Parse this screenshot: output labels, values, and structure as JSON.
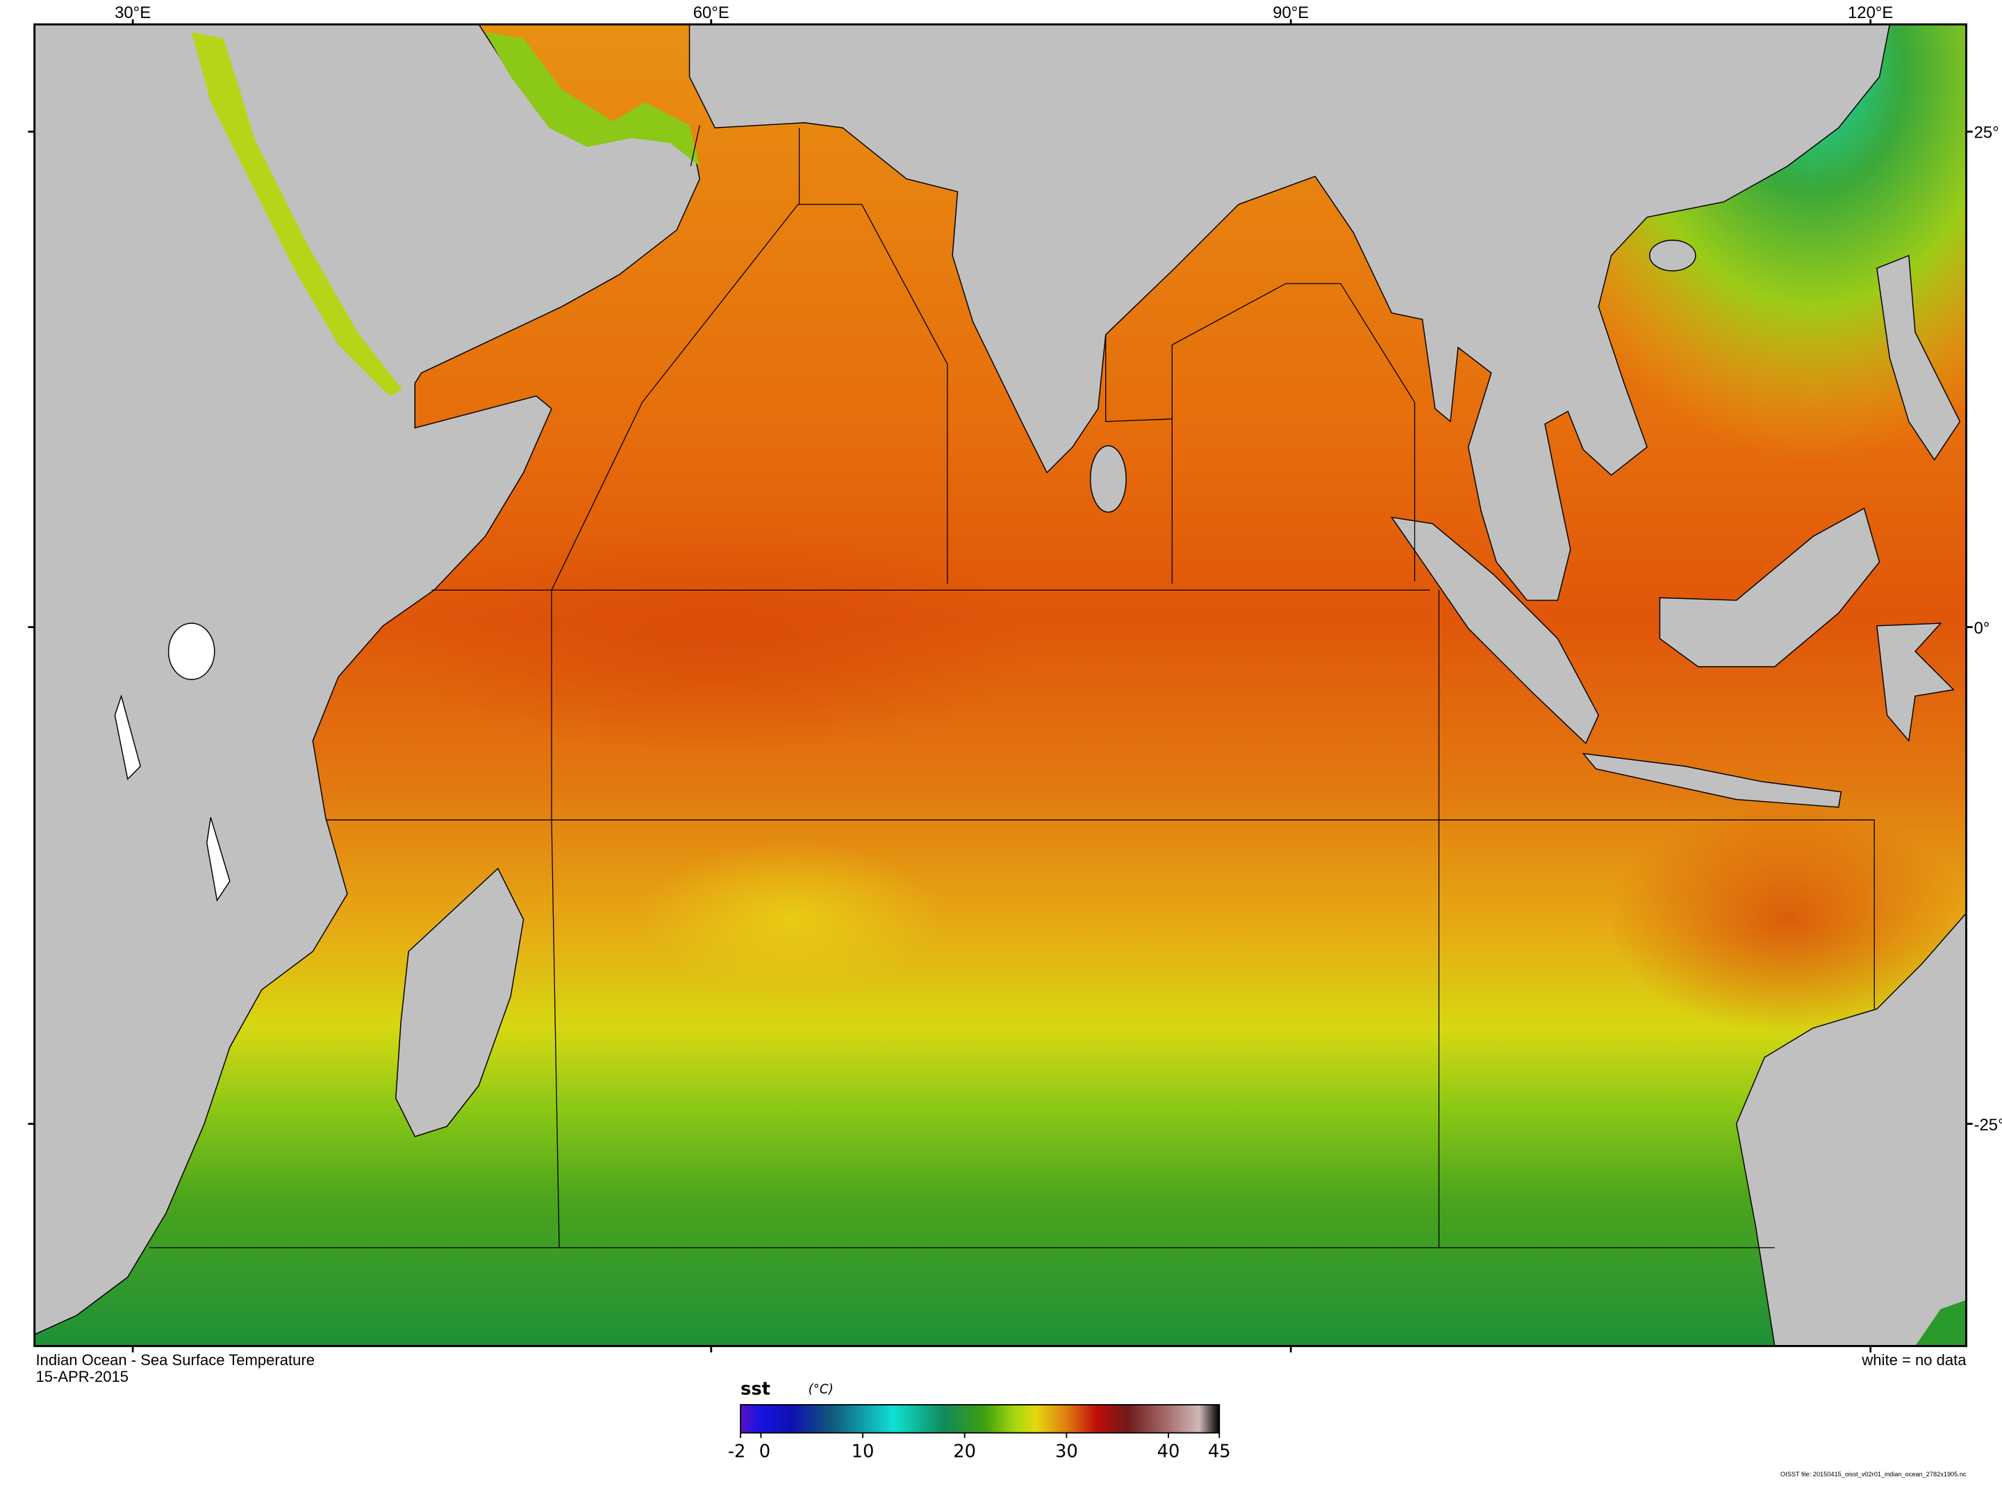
{
  "map": {
    "title": "Indian Ocean - Sea Surface Temperature",
    "date": "15-APR-2015",
    "no_data_note": "white = no data",
    "file_note": "OISST file: 20150415_oisst_v02r01_indian_ocean_2782x1905.nc",
    "lon_labels": [
      "30°E",
      "60°E",
      "90°E",
      "120°E"
    ],
    "lat_labels": [
      "25°",
      "0°",
      "-25°"
    ],
    "colors": {
      "land": "#c0c0c0",
      "no_data": "#ffffff"
    }
  },
  "colorbar": {
    "variable": "sst",
    "units": "(°C)",
    "range": [
      -2,
      45
    ],
    "ticks": [
      "-2",
      "0",
      "10",
      "20",
      "30",
      "40",
      "45"
    ],
    "stops": [
      {
        "value": -2,
        "color": "#5a10c8"
      },
      {
        "value": 0,
        "color": "#1414e0"
      },
      {
        "value": 3,
        "color": "#1010b0"
      },
      {
        "value": 7,
        "color": "#105a7a"
      },
      {
        "value": 13,
        "color": "#10e0d4"
      },
      {
        "value": 18,
        "color": "#108a5a"
      },
      {
        "value": 22,
        "color": "#40a010"
      },
      {
        "value": 25,
        "color": "#a8d810"
      },
      {
        "value": 27,
        "color": "#e4d810"
      },
      {
        "value": 30,
        "color": "#e07c10"
      },
      {
        "value": 33,
        "color": "#c00c0c"
      },
      {
        "value": 36,
        "color": "#701a1a"
      },
      {
        "value": 40,
        "color": "#a87070"
      },
      {
        "value": 43,
        "color": "#d0b8b8"
      },
      {
        "value": 45,
        "color": "#000000"
      }
    ]
  }
}
